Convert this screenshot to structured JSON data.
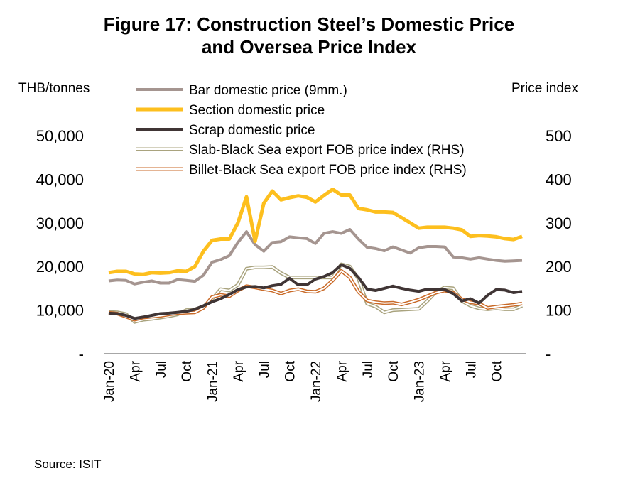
{
  "title_line1": "Figure 17: Construction Steel’s Domestic Price",
  "title_line2": "and Oversea  Price Index",
  "source": "Source: ISIT",
  "chart_data": {
    "type": "line",
    "ylabel_left": "THB/tonnes",
    "ylabel_right": "Price index",
    "ylim_left": [
      0,
      50000
    ],
    "ylim_right": [
      0,
      500
    ],
    "yticks_left": [
      "-",
      "10,000",
      "20,000",
      "30,000",
      "40,000",
      "50,000"
    ],
    "yticks_right": [
      "-",
      "100",
      "200",
      "300",
      "400",
      "500"
    ],
    "xtick_labels": [
      "Jan-20",
      "Apr",
      "Jul",
      "Oct",
      "Jan-21",
      "Apr",
      "Jul",
      "Oct",
      "Jan-22",
      "Apr",
      "Jul",
      "Oct",
      "Jan-23",
      "Apr",
      "Jul",
      "Oct"
    ],
    "xtick_index": [
      0,
      3,
      6,
      9,
      12,
      15,
      18,
      21,
      24,
      27,
      30,
      33,
      36,
      39,
      42,
      45
    ],
    "grid": false,
    "legend_position": "top",
    "series": [
      {
        "name": "Bar domestic price (9mm.)",
        "axis": "left",
        "color": "#A59590",
        "style": "solid",
        "values": [
          16700,
          16900,
          16800,
          16000,
          16400,
          16700,
          16200,
          16200,
          17000,
          16800,
          16600,
          18000,
          21000,
          21600,
          22500,
          25500,
          28000,
          25000,
          23500,
          25500,
          25700,
          26800,
          26600,
          26400,
          25300,
          27600,
          28000,
          27600,
          28500,
          26300,
          24400,
          24100,
          23600,
          24500,
          23800,
          23100,
          24300,
          24600,
          24600,
          24500,
          22200,
          22000,
          21700,
          22000,
          21700,
          21400,
          21200,
          21300,
          21400
        ]
      },
      {
        "name": "Section domestic price",
        "axis": "left",
        "color": "#FDBF1E",
        "style": "solid",
        "values": [
          18600,
          18900,
          18900,
          18300,
          18200,
          18600,
          18500,
          18600,
          19000,
          18900,
          20000,
          23500,
          26000,
          26300,
          26300,
          30000,
          36000,
          25800,
          34500,
          37300,
          35300,
          35800,
          36200,
          35900,
          34800,
          36300,
          37700,
          36400,
          36400,
          33300,
          33000,
          32500,
          32500,
          32400,
          31200,
          30000,
          28800,
          29000,
          29000,
          29000,
          28800,
          28400,
          26900,
          27100,
          27000,
          26800,
          26400,
          26200,
          26900
        ]
      },
      {
        "name": "Scrap domestic price",
        "axis": "left",
        "color": "#403535",
        "style": "solid",
        "values": [
          9300,
          9200,
          8800,
          8100,
          8400,
          8800,
          9200,
          9300,
          9500,
          9700,
          10200,
          11000,
          11900,
          12600,
          13600,
          14700,
          15300,
          15400,
          15100,
          15600,
          15900,
          17300,
          15800,
          15800,
          17100,
          17700,
          18600,
          20400,
          19600,
          17500,
          14800,
          14500,
          15000,
          15500,
          15000,
          14600,
          14300,
          14800,
          14700,
          14700,
          13800,
          12100,
          12600,
          11600,
          13400,
          14700,
          14600,
          14000,
          14300
        ]
      },
      {
        "name": "Slab-Black Sea export FOB price index (RHS)",
        "axis": "right",
        "color": "#A9A37E",
        "style": "double",
        "values": [
          96,
          95,
          91,
          73,
          78,
          80,
          83,
          86,
          90,
          100,
          102,
          108,
          125,
          148,
          145,
          158,
          195,
          198,
          198,
          199,
          185,
          175,
          175,
          175,
          175,
          175,
          175,
          205,
          200,
          172,
          115,
          108,
          95,
          100,
          101,
          102,
          103,
          121,
          142,
          152,
          150,
          121,
          110,
          104,
          102,
          104,
          102,
          102,
          110
        ]
      },
      {
        "name": "Billet-Black Sea export FOB price index (RHS)",
        "axis": "right",
        "color": "#C96A28",
        "style": "double",
        "values": [
          94,
          92,
          85,
          78,
          83,
          85,
          87,
          90,
          93,
          94,
          95,
          105,
          130,
          135,
          132,
          145,
          155,
          152,
          148,
          145,
          138,
          145,
          148,
          143,
          142,
          150,
          168,
          190,
          175,
          142,
          122,
          118,
          116,
          117,
          113,
          118,
          124,
          132,
          140,
          145,
          140,
          125,
          118,
          115,
          105,
          108,
          110,
          112,
          115
        ]
      }
    ]
  }
}
